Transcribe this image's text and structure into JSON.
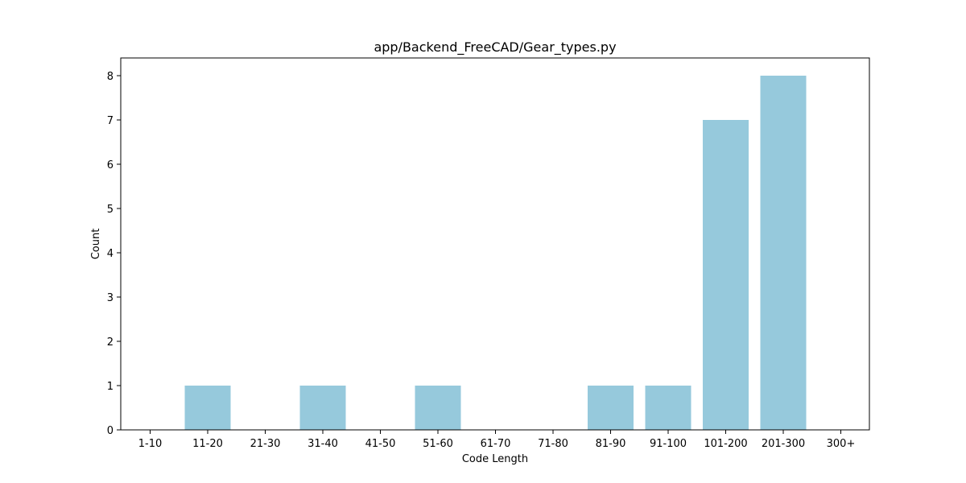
{
  "chart_data": {
    "type": "bar",
    "title": "app/Backend_FreeCAD/Gear_types.py",
    "xlabel": "Code Length",
    "ylabel": "Count",
    "categories": [
      "1-10",
      "11-20",
      "21-30",
      "31-40",
      "41-50",
      "51-60",
      "61-70",
      "71-80",
      "81-90",
      "91-100",
      "101-200",
      "201-300",
      "300+"
    ],
    "values": [
      0,
      1,
      0,
      1,
      0,
      1,
      0,
      0,
      1,
      1,
      7,
      8,
      0
    ],
    "ylim": [
      0,
      8.4
    ],
    "yticks": [
      0,
      1,
      2,
      3,
      4,
      5,
      6,
      7,
      8
    ],
    "bar_color": "#96c9dc",
    "grid": false,
    "legend": "none"
  }
}
